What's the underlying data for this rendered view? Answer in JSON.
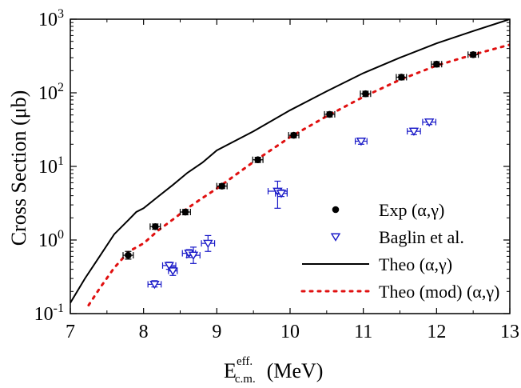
{
  "chart_data": {
    "type": "scatter",
    "xlabel": "E",
    "xlabel_sup": "eff.",
    "xlabel_sub": "c.m.",
    "xlabel_unit": "(MeV)",
    "ylabel": "Cross Section (μb)",
    "xlim": [
      7,
      13
    ],
    "ylim": [
      0.1,
      1000
    ],
    "y_scale": "log",
    "x_ticks": [
      "7",
      "8",
      "9",
      "10",
      "11",
      "12",
      "13"
    ],
    "y_ticks": [
      {
        "value": 0.1,
        "base": "10",
        "exp": "-1"
      },
      {
        "value": 1,
        "base": "10",
        "exp": "0"
      },
      {
        "value": 10,
        "base": "10",
        "exp": "1"
      },
      {
        "value": 100,
        "base": "10",
        "exp": "2"
      },
      {
        "value": 1000,
        "base": "10",
        "exp": "3"
      }
    ],
    "legend_position": "bottom-right",
    "series": [
      {
        "name": "Exp (α,γ)",
        "kind": "points",
        "marker": "filled-circle",
        "color": "#000000",
        "points": [
          {
            "x": 7.79,
            "y": 0.62,
            "xerr": 0.07,
            "yerr_lo": 0.55,
            "yerr_hi": 0.7
          },
          {
            "x": 8.16,
            "y": 1.52,
            "xerr": 0.07,
            "yerr_lo": 1.4,
            "yerr_hi": 1.65
          },
          {
            "x": 8.57,
            "y": 2.4,
            "xerr": 0.07,
            "yerr_lo": 2.2,
            "yerr_hi": 2.6
          },
          {
            "x": 9.07,
            "y": 5.4,
            "xerr": 0.07,
            "yerr_lo": 5.0,
            "yerr_hi": 5.8
          },
          {
            "x": 9.56,
            "y": 12.3,
            "xerr": 0.07,
            "yerr_lo": 11.3,
            "yerr_hi": 13.3
          },
          {
            "x": 10.05,
            "y": 26.5,
            "xerr": 0.07,
            "yerr_lo": 24.5,
            "yerr_hi": 28.5
          },
          {
            "x": 10.54,
            "y": 51,
            "xerr": 0.07,
            "yerr_lo": 47,
            "yerr_hi": 55
          },
          {
            "x": 11.03,
            "y": 97,
            "xerr": 0.07,
            "yerr_lo": 89,
            "yerr_hi": 105
          },
          {
            "x": 11.52,
            "y": 163,
            "xerr": 0.07,
            "yerr_lo": 150,
            "yerr_hi": 176
          },
          {
            "x": 12.0,
            "y": 245,
            "xerr": 0.07,
            "yerr_lo": 225,
            "yerr_hi": 265
          },
          {
            "x": 12.5,
            "y": 330,
            "xerr": 0.07,
            "yerr_lo": 305,
            "yerr_hi": 355
          }
        ]
      },
      {
        "name": "Baglin et al.",
        "kind": "points",
        "marker": "open-triangle-down",
        "color": "#1a1ac8",
        "points": [
          {
            "x": 8.15,
            "y": 0.25,
            "xerr": 0.09,
            "yerr_lo": 0.23,
            "yerr_hi": 0.28
          },
          {
            "x": 8.35,
            "y": 0.45,
            "xerr": 0.09,
            "yerr_lo": 0.4,
            "yerr_hi": 0.5
          },
          {
            "x": 8.4,
            "y": 0.38,
            "xerr": 0.06,
            "yerr_lo": 0.33,
            "yerr_hi": 0.43
          },
          {
            "x": 8.62,
            "y": 0.66,
            "xerr": 0.09,
            "yerr_lo": 0.58,
            "yerr_hi": 0.74
          },
          {
            "x": 8.68,
            "y": 0.62,
            "xerr": 0.09,
            "yerr_lo": 0.48,
            "yerr_hi": 0.8
          },
          {
            "x": 8.88,
            "y": 0.9,
            "xerr": 0.09,
            "yerr_lo": 0.7,
            "yerr_hi": 1.15
          },
          {
            "x": 9.83,
            "y": 4.6,
            "xerr": 0.13,
            "yerr_lo": 2.7,
            "yerr_hi": 6.3
          },
          {
            "x": 9.88,
            "y": 4.3,
            "xerr": 0.08,
            "yerr_lo": 3.9,
            "yerr_hi": 4.8
          },
          {
            "x": 10.97,
            "y": 22,
            "xerr": 0.08,
            "yerr_lo": 20,
            "yerr_hi": 24
          },
          {
            "x": 11.69,
            "y": 30,
            "xerr": 0.09,
            "yerr_lo": 27,
            "yerr_hi": 33
          },
          {
            "x": 11.9,
            "y": 40,
            "xerr": 0.09,
            "yerr_lo": 37,
            "yerr_hi": 43
          }
        ]
      },
      {
        "name": "Theo (α,γ)",
        "kind": "line",
        "style": "solid",
        "color": "#000000",
        "x": [
          7.0,
          7.2,
          7.4,
          7.6,
          7.8,
          7.9,
          8.0,
          8.2,
          8.4,
          8.6,
          8.8,
          9.0,
          9.5,
          10.0,
          10.5,
          11.0,
          11.5,
          12.0,
          12.5,
          13.0
        ],
        "y": [
          0.14,
          0.3,
          0.6,
          1.2,
          1.9,
          2.4,
          2.7,
          3.9,
          5.6,
          8.2,
          11.2,
          16.5,
          30,
          58,
          105,
          185,
          300,
          470,
          690,
          1000
        ]
      },
      {
        "name": "Theo (mod) (α,γ)",
        "kind": "line",
        "style": "dotted",
        "color": "#e01010",
        "x": [
          7.25,
          7.4,
          7.6,
          7.8,
          8.0,
          8.2,
          8.4,
          8.6,
          8.8,
          9.0,
          9.5,
          10.0,
          10.5,
          11.0,
          11.5,
          12.0,
          12.5,
          13.0
        ],
        "y": [
          0.13,
          0.22,
          0.42,
          0.7,
          0.9,
          1.35,
          1.9,
          2.7,
          3.7,
          5.0,
          11.5,
          25,
          48,
          88,
          150,
          235,
          330,
          450
        ]
      }
    ]
  }
}
